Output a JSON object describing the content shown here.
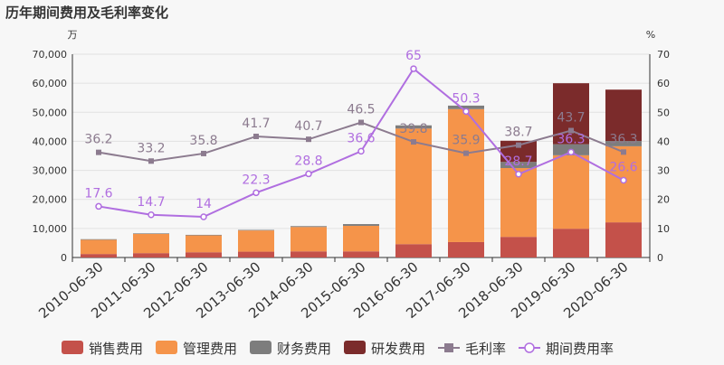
{
  "title": "历年期间费用及毛利率变化",
  "chart_data": {
    "type": "bar",
    "stacked": true,
    "title": "历年期间费用及毛利率变化",
    "categories": [
      "2010-06-30",
      "2011-06-30",
      "2012-06-30",
      "2013-06-30",
      "2014-06-30",
      "2015-06-30",
      "2016-06-30",
      "2017-06-30",
      "2018-06-30",
      "2019-06-30",
      "2020-06-30"
    ],
    "left_axis": {
      "unit": "万",
      "ylim": [
        0,
        70000
      ],
      "ticks": [
        "0",
        "10,000",
        "20,000",
        "30,000",
        "40,000",
        "50,000",
        "60,000",
        "70,000"
      ]
    },
    "right_axis": {
      "unit": "%",
      "ylim": [
        0,
        70
      ],
      "ticks": [
        "0",
        "10",
        "20",
        "30",
        "40",
        "50",
        "60",
        "70"
      ]
    },
    "series": [
      {
        "name": "销售费用",
        "color": "#c4514a",
        "axis": "left",
        "values": [
          1200,
          1500,
          1800,
          2000,
          2100,
          2100,
          4600,
          5300,
          7100,
          9900,
          12100
        ]
      },
      {
        "name": "管理费用",
        "color": "#f5944a",
        "axis": "left",
        "values": [
          4900,
          6600,
          5800,
          7300,
          8400,
          8800,
          39800,
          45800,
          23700,
          25300,
          26200
        ]
      },
      {
        "name": "财务费用",
        "color": "#7d7d7d",
        "axis": "left",
        "values": [
          200,
          200,
          200,
          200,
          300,
          600,
          1100,
          1200,
          2100,
          3800,
          1800
        ]
      },
      {
        "name": "研发费用",
        "color": "#7b2b2b",
        "axis": "left",
        "values": [
          0,
          0,
          0,
          0,
          0,
          0,
          0,
          0,
          7300,
          21000,
          17700
        ]
      }
    ],
    "lines": [
      {
        "name": "毛利率",
        "color": "#8c7b8f",
        "axis": "right",
        "marker": "square",
        "values": [
          36.2,
          33.2,
          35.8,
          41.7,
          40.7,
          46.5,
          39.8,
          35.9,
          38.7,
          43.7,
          36.3
        ],
        "labels": [
          "36.2",
          "33.2",
          "35.8",
          "41.7",
          "40.7",
          "46.5",
          "39.8",
          "35.9",
          "38.7",
          "43.7",
          "36.3"
        ]
      },
      {
        "name": "期间费用率",
        "color": "#b06ee0",
        "axis": "right",
        "marker": "circle",
        "values": [
          17.6,
          14.7,
          14.0,
          22.3,
          28.8,
          36.6,
          65.0,
          50.3,
          28.7,
          36.3,
          26.6
        ],
        "labels": [
          "17.6",
          "14.7",
          "14",
          "22.3",
          "28.8",
          "36.6",
          "65",
          "50.3",
          "28.7",
          "36.3",
          "26.6"
        ]
      }
    ],
    "legend": [
      "销售费用",
      "管理费用",
      "财务费用",
      "研发费用",
      "毛利率",
      "期间费用率"
    ],
    "legend_position": "bottom"
  }
}
